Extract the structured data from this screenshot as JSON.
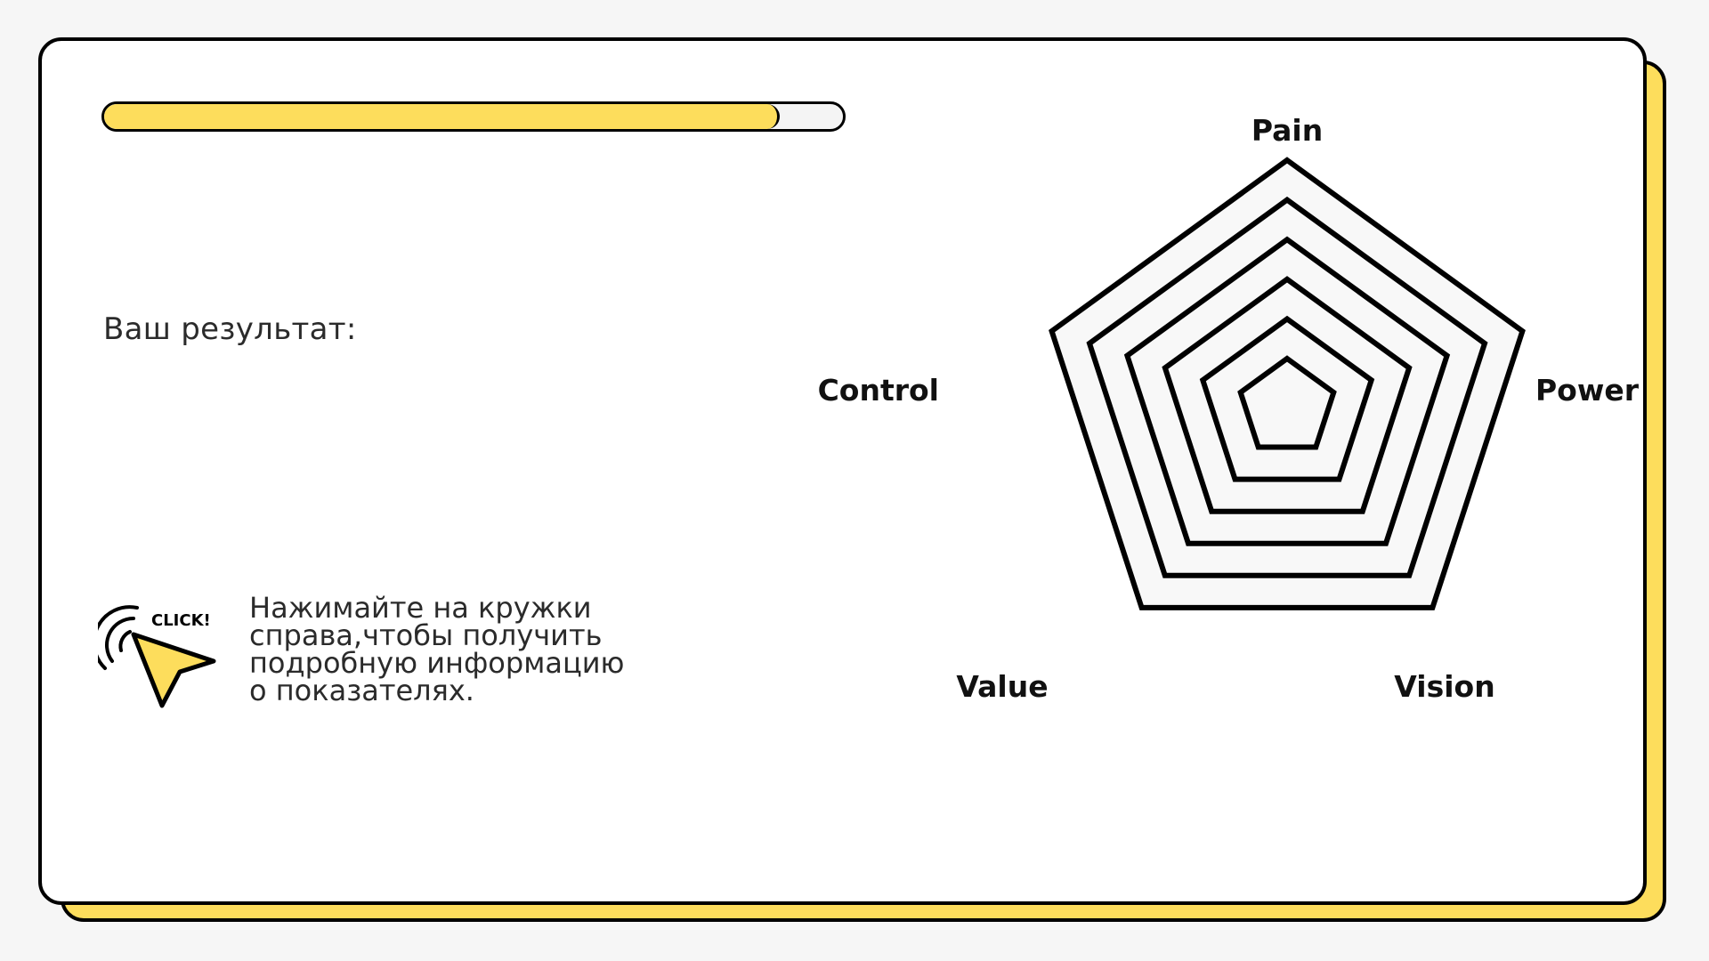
{
  "progress": {
    "value_percent": 91.5,
    "fill_color": "#fddd5c"
  },
  "result": {
    "label": "Ваш результат:"
  },
  "hint": {
    "icon": "click-cursor-icon",
    "icon_text": "CLICK!",
    "lines": [
      "Нажимайте на кружки",
      "справа,чтобы получить",
      "подробную информацию",
      "о показателях."
    ]
  },
  "radar": {
    "axes": [
      "Pain",
      "Power",
      "Vision",
      "Value",
      "Control"
    ],
    "levels": 6,
    "ring_fill": "#f8f8f8",
    "ring_stroke": "#000000"
  },
  "colors": {
    "accent": "#fddd5c",
    "background": "#f6f6f6",
    "card": "#ffffff"
  }
}
